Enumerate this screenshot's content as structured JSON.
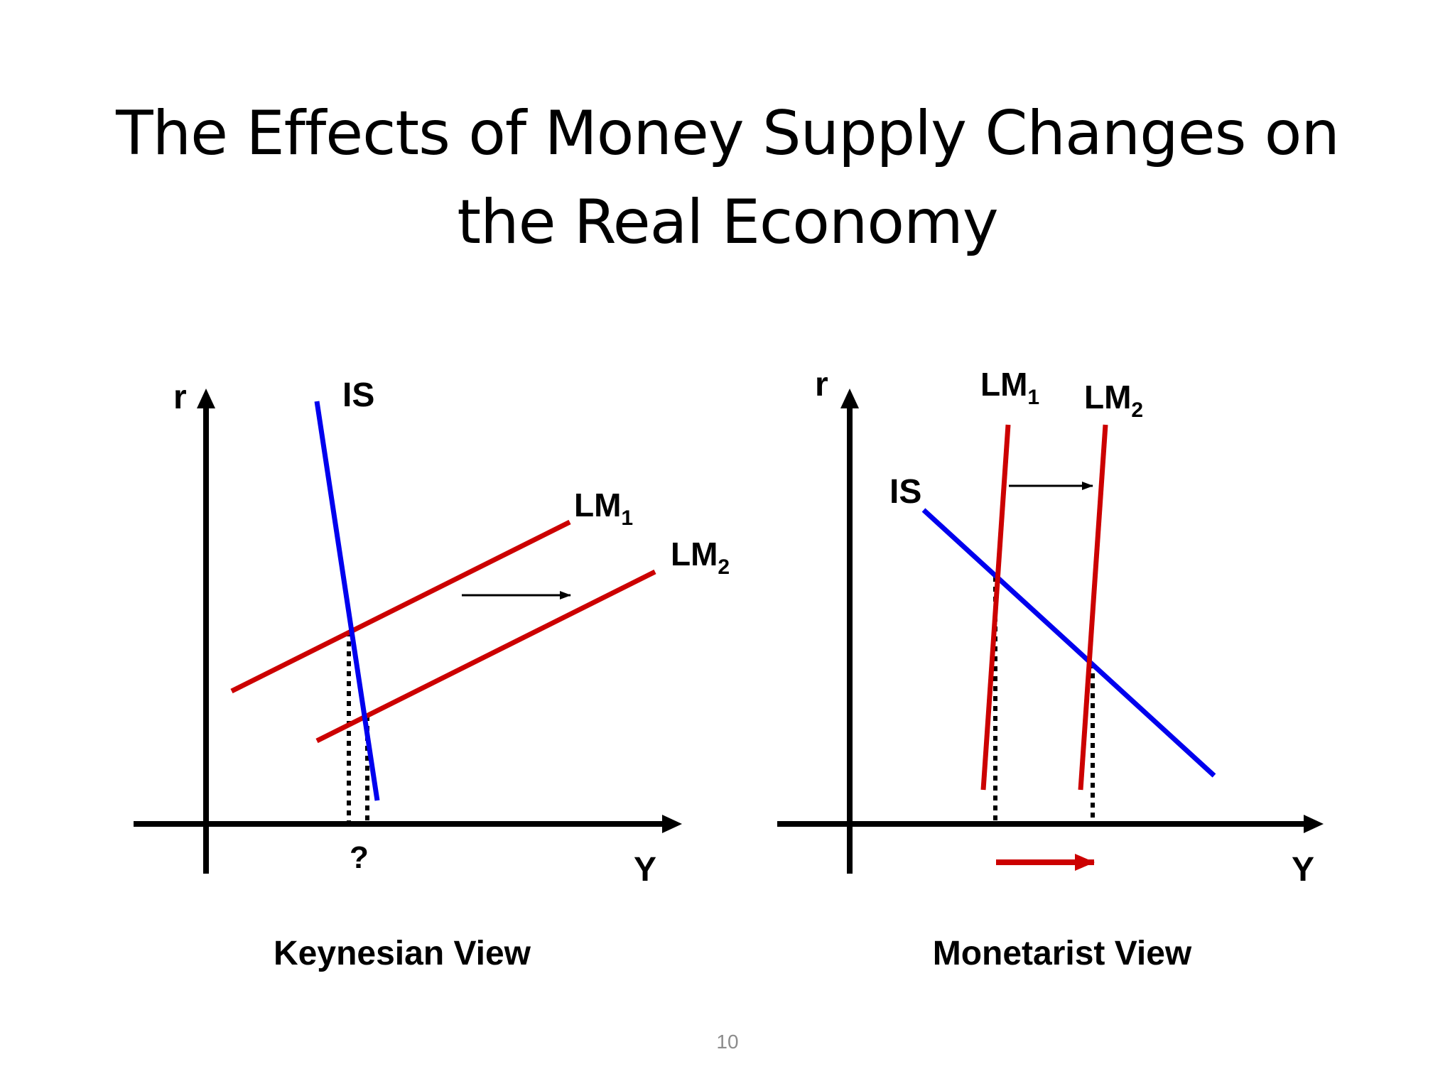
{
  "slide": {
    "title_line_1": "The Effects of Money Supply Changes on",
    "title_line_2": "the Real Economy",
    "page_number": "10"
  },
  "colors": {
    "is_curve": "#0000ee",
    "lm_curve": "#cc0000",
    "axes": "#000000",
    "shift_arrow_output": "#cc0000"
  },
  "keynesian": {
    "y_axis_label": "r",
    "x_axis_label": "Y",
    "is_label": "IS",
    "lm1_label": "LM",
    "lm1_sub": "1",
    "lm2_label": "LM",
    "lm2_sub": "2",
    "output_change_label": "?",
    "caption": "Keynesian View"
  },
  "monetarist": {
    "y_axis_label": "r",
    "x_axis_label": "Y",
    "is_label": "IS",
    "lm1_label": "LM",
    "lm1_sub": "1",
    "lm2_label": "LM",
    "lm2_sub": "2",
    "caption": "Monetarist View"
  }
}
